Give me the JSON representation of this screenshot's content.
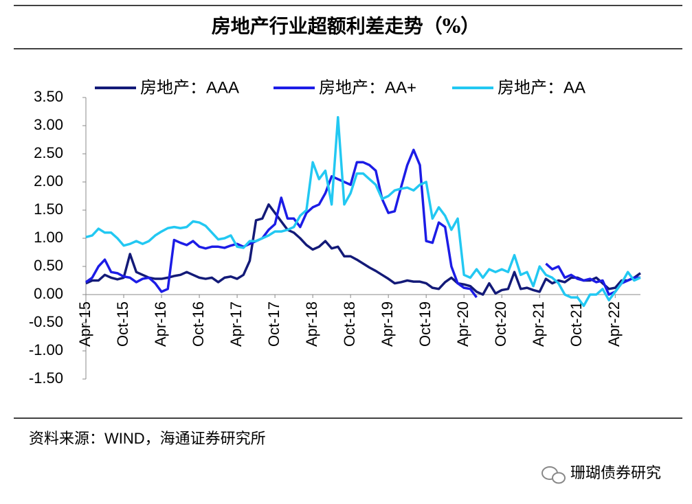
{
  "title": "房地产行业超额利差走势（%）",
  "source": "资料来源：WIND，海通证券研究所",
  "watermark": "珊瑚债券研究",
  "chart_data": {
    "type": "line",
    "categories": [
      "Apr-15",
      null,
      null,
      null,
      null,
      null,
      "Oct-15",
      null,
      null,
      null,
      null,
      null,
      "Apr-16",
      null,
      null,
      null,
      null,
      null,
      "Oct-16",
      null,
      null,
      null,
      null,
      null,
      "Apr-17",
      null,
      null,
      null,
      null,
      null,
      "Oct-17",
      null,
      null,
      null,
      null,
      null,
      "Apr-18",
      null,
      null,
      null,
      null,
      null,
      "Oct-18",
      null,
      null,
      null,
      null,
      null,
      "Apr-19",
      null,
      null,
      null,
      null,
      null,
      "Oct-19",
      null,
      null,
      null,
      null,
      null,
      "Apr-20",
      null,
      null,
      null,
      null,
      null,
      "Oct-20",
      null,
      null,
      null,
      null,
      null,
      "Apr-21",
      null,
      null,
      null,
      null,
      null,
      "Oct-21",
      null,
      null,
      null,
      null,
      null,
      "Apr-22",
      null,
      null,
      null,
      null
    ],
    "series": [
      {
        "name": "房地产：AAA",
        "color": "#131a78",
        "values": [
          0.2,
          0.25,
          0.25,
          0.35,
          0.3,
          0.27,
          0.3,
          0.72,
          0.4,
          0.35,
          0.3,
          0.28,
          0.28,
          0.3,
          0.33,
          0.35,
          0.4,
          0.35,
          0.3,
          0.28,
          0.3,
          0.22,
          0.3,
          0.32,
          0.28,
          0.35,
          0.6,
          1.32,
          1.35,
          1.6,
          1.45,
          1.3,
          1.15,
          1.1,
          1.0,
          0.88,
          0.8,
          0.85,
          0.95,
          0.82,
          0.85,
          0.68,
          0.68,
          0.62,
          0.55,
          0.48,
          0.42,
          0.35,
          0.28,
          0.2,
          0.22,
          0.25,
          0.23,
          0.23,
          0.2,
          0.12,
          0.1,
          0.22,
          0.3,
          0.2,
          0.18,
          0.15,
          0.05,
          0.0,
          0.2,
          0.02,
          0.08,
          0.1,
          0.4,
          0.1,
          0.12,
          0.08,
          0.05,
          0.28,
          0.2,
          0.25,
          0.22,
          0.3,
          0.3,
          0.25,
          0.25,
          0.3,
          0.2,
          0.1,
          0.12,
          0.25,
          0.25,
          0.3,
          0.38
        ]
      },
      {
        "name": "房地产：AA+",
        "color": "#1c1ce6",
        "values": [
          0.22,
          0.3,
          0.5,
          0.62,
          0.4,
          0.38,
          0.32,
          0.3,
          0.22,
          0.28,
          0.3,
          0.2,
          0.05,
          0.1,
          0.97,
          0.92,
          0.88,
          0.95,
          0.85,
          0.82,
          0.85,
          0.85,
          0.83,
          0.87,
          0.9,
          0.85,
          0.9,
          0.95,
          1.0,
          1.15,
          1.25,
          1.72,
          1.35,
          1.35,
          1.2,
          1.45,
          1.55,
          1.6,
          1.8,
          2.1,
          2.05,
          2.0,
          1.95,
          2.35,
          2.35,
          2.3,
          2.2,
          1.7,
          1.45,
          1.48,
          1.9,
          2.3,
          2.57,
          2.3,
          0.95,
          0.92,
          1.28,
          1.2,
          0.5,
          0.2,
          0.12,
          0.1,
          -0.05,
          null,
          null,
          null,
          null,
          null,
          null,
          null,
          null,
          null,
          null,
          0.55,
          0.45,
          0.5,
          0.3,
          0.35,
          0.28,
          0.25,
          0.28,
          0.22,
          0.25,
          0.0,
          0.05,
          0.2,
          0.25,
          0.3,
          0.3
        ]
      },
      {
        "name": "房地产：AA",
        "color": "#22c8f2",
        "values": [
          1.02,
          1.05,
          1.17,
          1.1,
          1.1,
          1.0,
          0.87,
          0.9,
          0.95,
          0.9,
          0.95,
          1.05,
          1.12,
          1.18,
          1.2,
          1.18,
          1.2,
          1.3,
          1.28,
          1.22,
          1.1,
          0.98,
          1.0,
          1.05,
          0.85,
          0.83,
          0.95,
          0.95,
          1.0,
          1.05,
          1.12,
          1.12,
          1.15,
          1.2,
          1.4,
          1.5,
          2.35,
          2.05,
          2.2,
          1.6,
          3.15,
          1.6,
          1.8,
          2.15,
          2.15,
          2.05,
          1.95,
          1.7,
          1.75,
          1.85,
          1.88,
          1.9,
          1.85,
          1.95,
          2.0,
          1.35,
          1.55,
          1.4,
          1.15,
          1.35,
          0.35,
          0.3,
          0.45,
          0.3,
          0.45,
          0.4,
          0.45,
          0.4,
          0.7,
          0.35,
          0.4,
          0.15,
          0.5,
          0.35,
          0.3,
          0.2,
          0.0,
          -0.05,
          -0.05,
          -0.2,
          0.0,
          0.0,
          0.1,
          -0.1,
          0.05,
          0.2,
          0.4,
          0.25,
          0.3
        ]
      }
    ],
    "ylim": [
      -1.5,
      3.5
    ],
    "yticks": [
      {
        "value": 3.5,
        "label": "3.50"
      },
      {
        "value": 3.0,
        "label": "3.00"
      },
      {
        "value": 2.5,
        "label": "2.50"
      },
      {
        "value": 2.0,
        "label": "2.00"
      },
      {
        "value": 1.5,
        "label": "1.50"
      },
      {
        "value": 1.0,
        "label": "1.00"
      },
      {
        "value": 0.5,
        "label": "0.50"
      },
      {
        "value": 0,
        "label": "0.00"
      },
      {
        "value": -0.5,
        "label": "-0.50"
      },
      {
        "value": -1.0,
        "label": "-1.00"
      },
      {
        "value": -1.5,
        "label": "-1.50"
      }
    ],
    "legend": "top",
    "grid": false
  }
}
